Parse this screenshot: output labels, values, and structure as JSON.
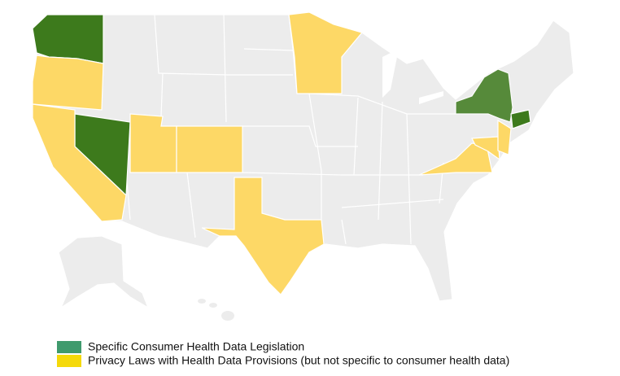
{
  "legend": {
    "items": [
      {
        "label": "Specific Consumer Health Data Legislation",
        "color": "#3f9a6d",
        "map_color": "#3d7a1c"
      },
      {
        "label": "Privacy Laws with Health Data Provisions (but not specific to consumer health data)",
        "color": "#f5d90a",
        "map_color": "#fdd866"
      }
    ]
  }
}
